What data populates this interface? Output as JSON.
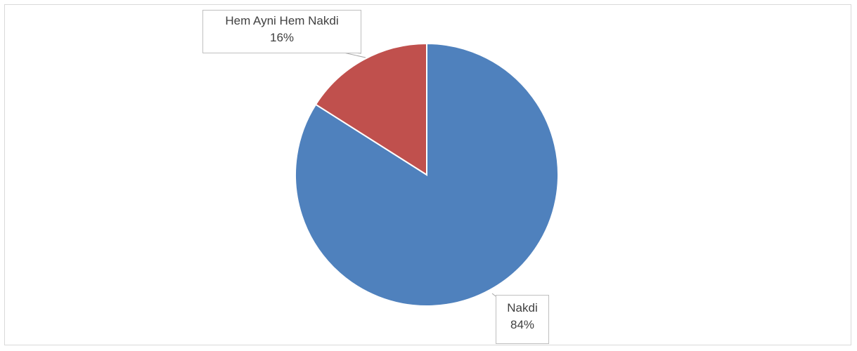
{
  "chart_data": {
    "type": "pie",
    "title": "",
    "slices": [
      {
        "label": "Nakdi",
        "value": 84,
        "value_label": "84%",
        "color": "#4f81bd"
      },
      {
        "label": "Hem Ayni Hem Nakdi",
        "value": 16,
        "value_label": "16%",
        "color": "#c0504d"
      }
    ],
    "start_angle": "12 o'clock, clockwise",
    "legend": "none (callout data labels)"
  }
}
